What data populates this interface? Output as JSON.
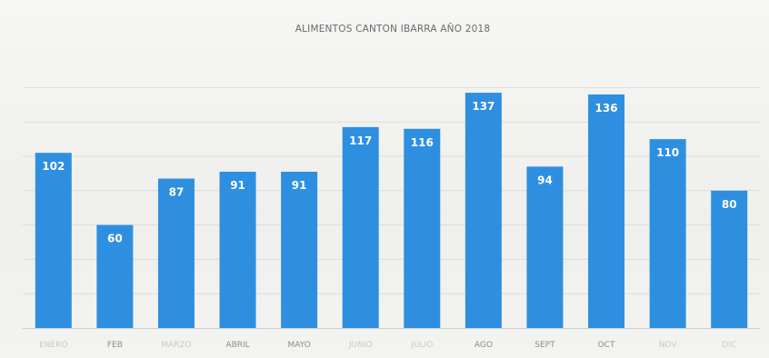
{
  "chart_data": {
    "type": "bar",
    "title": "ALIMENTOS CANTON IBARRA AÑO 2018",
    "xlabel": "",
    "ylabel": "",
    "categories": [
      "ENERO",
      "FEB",
      "MARZO",
      "ABRIL",
      "MAYO",
      "JUNIO",
      "JULIO",
      "AGO",
      "SEPT",
      "OCT",
      "NOV",
      "DIC"
    ],
    "faint_categories": [
      "ENERO",
      "MARZO",
      "JUNIO",
      "JULIO",
      "NOV",
      "DIC"
    ],
    "series": [
      {
        "values": [
          102,
          60,
          87,
          91,
          91,
          117,
          116,
          137,
          94,
          136,
          110,
          80
        ],
        "color": "#2e8fe0"
      }
    ],
    "ylim": [
      0,
      140
    ],
    "grid": true,
    "legend": "none"
  }
}
